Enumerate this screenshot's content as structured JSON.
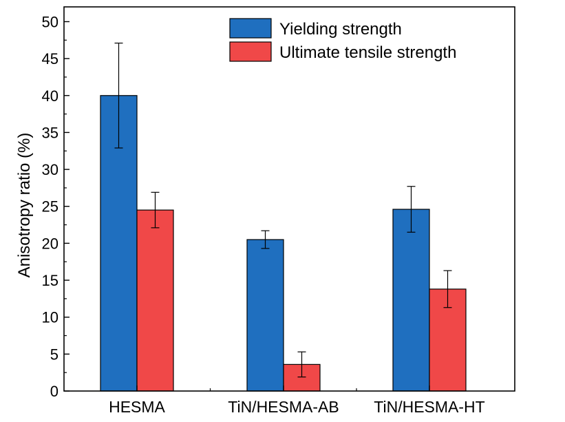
{
  "chart_data": {
    "type": "bar",
    "title": "",
    "xlabel": "",
    "ylabel": "Anisotropy ratio (%)",
    "ylim": [
      0,
      52
    ],
    "yticks": [
      0,
      5,
      10,
      15,
      20,
      25,
      30,
      35,
      40,
      45,
      50
    ],
    "categories": [
      "HESMA",
      "TiN/HESMA-AB",
      "TiN/HESMA-HT"
    ],
    "series": [
      {
        "name": "Yielding strength",
        "color": "#1f6fbf",
        "values": [
          40.0,
          20.5,
          24.6
        ],
        "errors": [
          7.1,
          1.2,
          3.1
        ]
      },
      {
        "name": "Ultimate tensile strength",
        "color": "#f04848",
        "values": [
          24.5,
          3.6,
          13.8
        ],
        "errors": [
          2.4,
          1.7,
          2.5
        ]
      }
    ],
    "legend_position": "top-right",
    "grid": false
  }
}
